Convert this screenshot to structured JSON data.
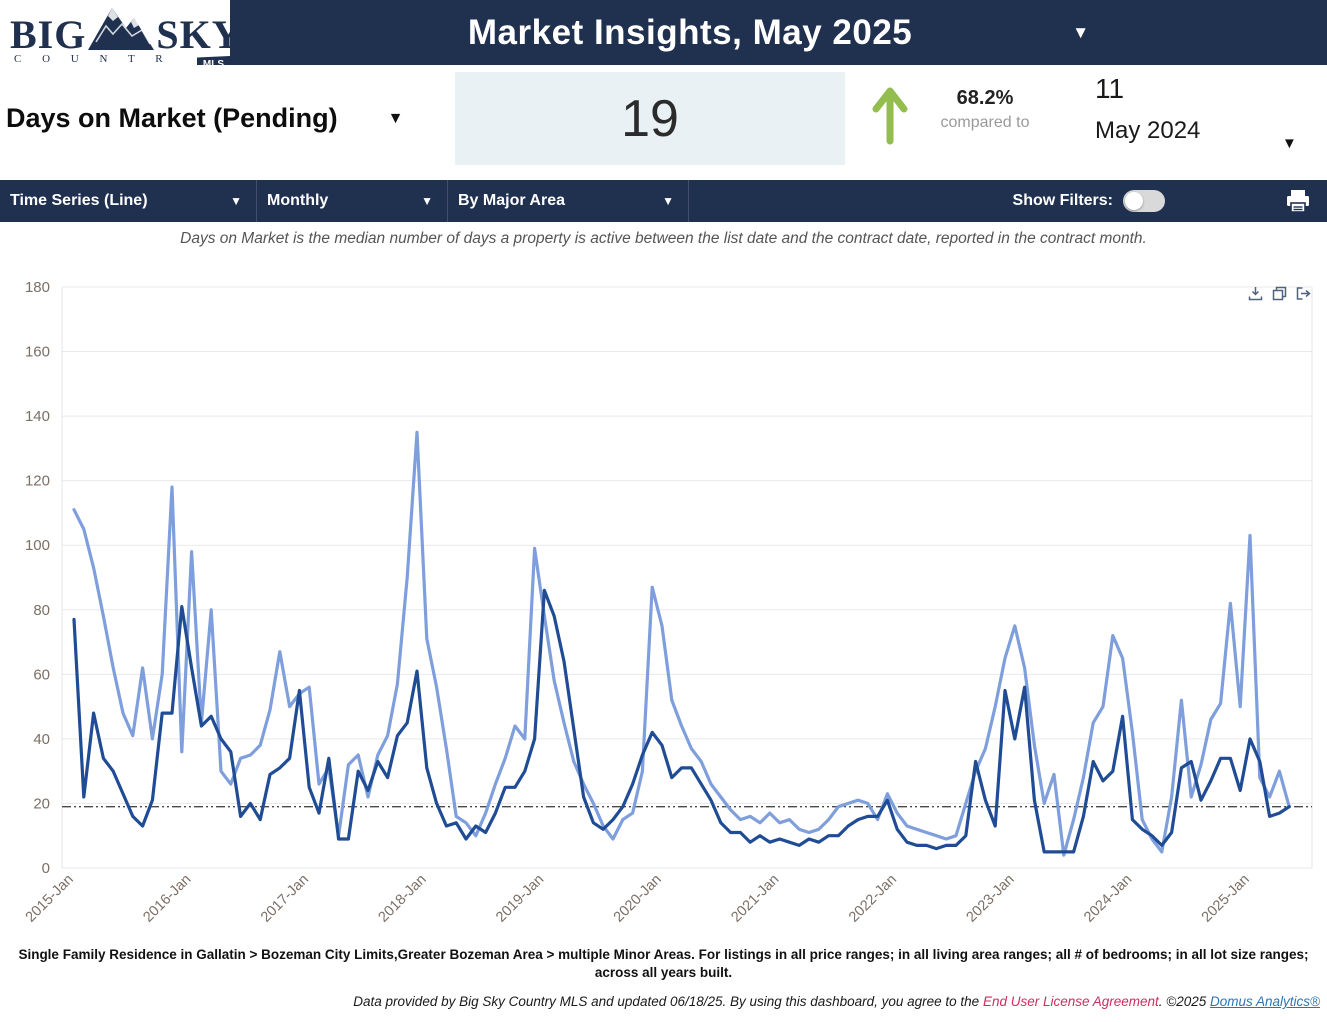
{
  "logo": {
    "word1": "BIG",
    "word2": "SKY",
    "country": "C O U N T R Y",
    "badge": "MLS"
  },
  "header": {
    "title": "Market Insights, May 2025"
  },
  "kpi": {
    "metric_label": "Days on Market (Pending)",
    "current_value": "19",
    "change_pct": "68.2%",
    "compared_to_label": "compared to",
    "previous_value": "11",
    "previous_period": "May 2024"
  },
  "toolbar": {
    "chart_type": "Time Series (Line)",
    "frequency": "Monthly",
    "grouping": "By Major Area",
    "show_filters_label": "Show Filters:"
  },
  "subtitle": "Days on Market is the median number of days a property is active between the list date and the contract date, reported in the contract month.",
  "chart_data": {
    "type": "line",
    "x_monthly_start": "2015-01",
    "x_monthly_end": "2025-05",
    "n_points": 125,
    "x_tick_labels": [
      "2015-Jan",
      "2016-Jan",
      "2017-Jan",
      "2018-Jan",
      "2019-Jan",
      "2020-Jan",
      "2021-Jan",
      "2022-Jan",
      "2023-Jan",
      "2024-Jan",
      "2025-Jan"
    ],
    "ylim": [
      0,
      180
    ],
    "y_ticks": [
      0,
      20,
      40,
      60,
      80,
      100,
      120,
      140,
      160,
      180
    ],
    "grid": "horizontal",
    "legend": "none",
    "reference_line": {
      "value": 19,
      "style": "dash-dot",
      "color": "#4a4a4a"
    },
    "series": [
      {
        "name": "series-light-blue",
        "color": "#7e9fdc",
        "values": [
          111,
          105,
          93,
          78,
          62,
          48,
          41,
          62,
          40,
          60,
          118,
          36,
          98,
          45,
          80,
          30,
          26,
          34,
          35,
          38,
          49,
          67,
          50,
          54,
          56,
          26,
          31,
          10,
          32,
          35,
          22,
          35,
          41,
          57,
          90,
          135,
          71,
          56,
          37,
          16,
          14,
          10,
          17,
          26,
          34,
          44,
          40,
          99,
          78,
          58,
          45,
          33,
          26,
          20,
          13,
          9,
          15,
          17,
          30,
          87,
          75,
          52,
          44,
          37,
          33,
          26,
          22,
          18,
          15,
          16,
          14,
          17,
          14,
          15,
          12,
          11,
          12,
          15,
          19,
          20,
          21,
          20,
          15,
          23,
          17,
          13,
          12,
          11,
          10,
          9,
          10,
          20,
          30,
          37,
          50,
          65,
          75,
          62,
          38,
          20,
          29,
          4,
          15,
          28,
          45,
          50,
          72,
          65,
          42,
          15,
          9,
          5,
          22,
          52,
          22,
          32,
          46,
          51,
          82,
          50,
          103,
          28,
          22,
          30,
          19
        ]
      },
      {
        "name": "series-dark-blue",
        "color": "#1f4c94",
        "values": [
          77,
          22,
          48,
          34,
          30,
          23,
          16,
          13,
          21,
          48,
          48,
          81,
          62,
          44,
          47,
          40,
          36,
          16,
          20,
          15,
          29,
          31,
          34,
          55,
          25,
          17,
          34,
          9,
          9,
          30,
          24,
          33,
          28,
          41,
          45,
          61,
          31,
          20,
          13,
          14,
          9,
          13,
          11,
          17,
          25,
          25,
          30,
          40,
          86,
          78,
          64,
          43,
          22,
          14,
          12,
          15,
          19,
          26,
          35,
          42,
          38,
          28,
          31,
          31,
          26,
          21,
          14,
          11,
          11,
          8,
          10,
          8,
          9,
          8,
          7,
          9,
          8,
          10,
          10,
          13,
          15,
          16,
          16,
          21,
          12,
          8,
          7,
          7,
          6,
          7,
          7,
          10,
          33,
          21,
          13,
          55,
          40,
          56,
          21,
          5,
          5,
          5,
          5,
          16,
          33,
          27,
          30,
          47,
          15,
          12,
          10,
          7,
          11,
          31,
          33,
          21,
          27,
          34,
          34,
          24,
          40,
          33,
          16,
          17,
          19
        ]
      }
    ]
  },
  "chart_icons": [
    "download-icon",
    "copy-icon",
    "export-icon"
  ],
  "footer": {
    "disclaimer": "Single Family Residence in Gallatin > Bozeman City Limits,Greater Bozeman Area > multiple Minor Areas. For listings in all price ranges; in all living area ranges; all # of bedrooms; in all lot size ranges; across all years built.",
    "credits_part1": "Data provided by Big Sky Country MLS and updated 06/18/25.  By using this dashboard, you agree to the ",
    "eula_link": "End User License Agreement",
    "credits_part2": ".  ©2025 ",
    "domus_link": "Domus Analytics®"
  },
  "colors": {
    "navy": "#203150",
    "kpi_box_bg": "#e9f1f4",
    "trend_green": "#93be4f",
    "axis_label": "#7b6f66",
    "gridline": "#e9e9e9"
  }
}
